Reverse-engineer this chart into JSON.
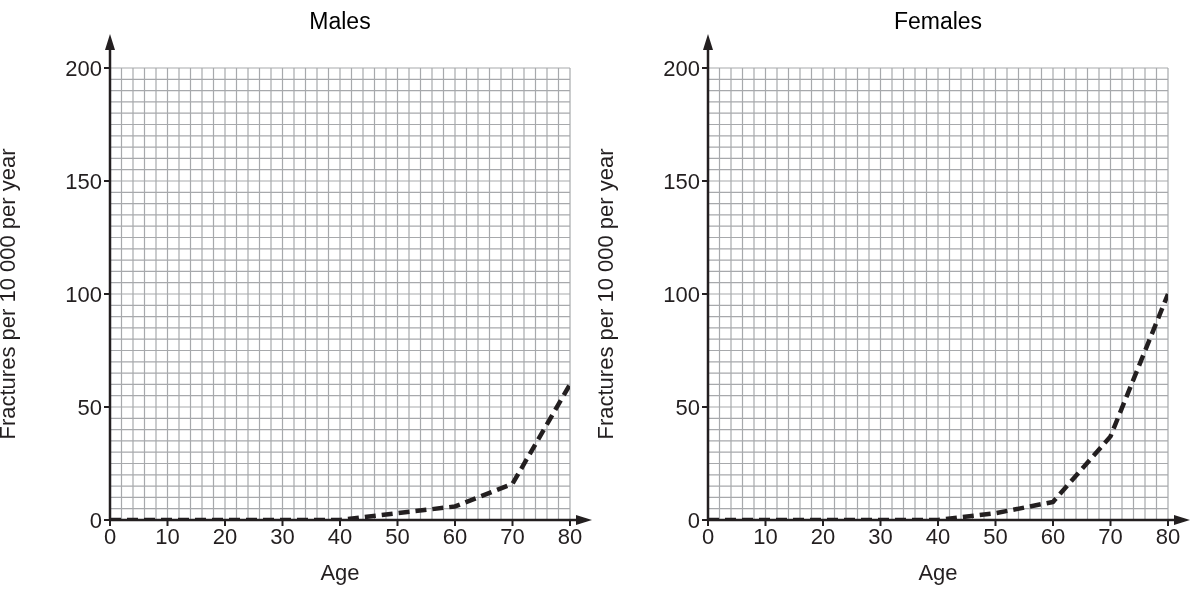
{
  "chart_data": [
    {
      "type": "line",
      "title": "Males",
      "xlabel": "Age",
      "ylabel": "Fractures per 10 000 per year",
      "x": [
        0,
        10,
        20,
        30,
        40,
        50,
        60,
        70,
        80
      ],
      "series": [
        {
          "color": "#231f20",
          "values": [
            0,
            0,
            0,
            0,
            0,
            3,
            6,
            16,
            60
          ]
        }
      ],
      "xlim": [
        0,
        80
      ],
      "ylim": [
        0,
        200
      ],
      "xticks": [
        0,
        10,
        20,
        30,
        40,
        50,
        60,
        70,
        80
      ],
      "yticks": [
        0,
        50,
        100,
        150,
        200
      ],
      "grid": true,
      "line_style": "dashed"
    },
    {
      "type": "line",
      "title": "Females",
      "xlabel": "Age",
      "ylabel": "Fractures per 10 000 per year",
      "x": [
        0,
        10,
        20,
        30,
        40,
        50,
        60,
        70,
        80
      ],
      "series": [
        {
          "color": "#231f20",
          "values": [
            0,
            0,
            0,
            0,
            0,
            3,
            8,
            37,
            100
          ]
        }
      ],
      "xlim": [
        0,
        80
      ],
      "ylim": [
        0,
        200
      ],
      "xticks": [
        0,
        10,
        20,
        30,
        40,
        50,
        60,
        70,
        80
      ],
      "yticks": [
        0,
        50,
        100,
        150,
        200
      ],
      "grid": true,
      "line_style": "dashed"
    }
  ]
}
